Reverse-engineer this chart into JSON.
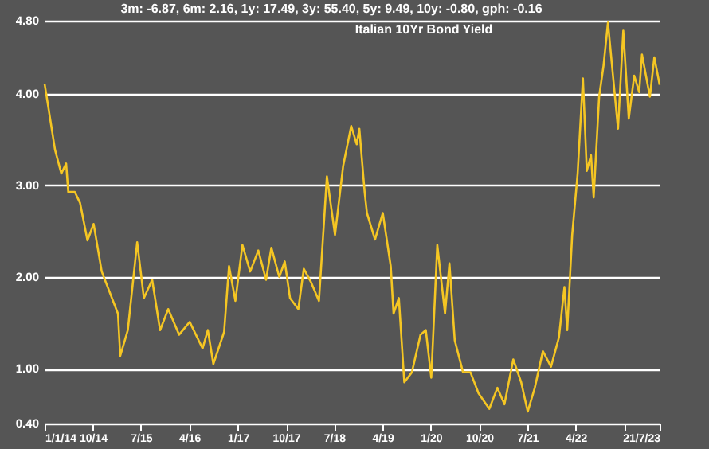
{
  "chart_data": {
    "type": "line",
    "title": "Italian 10Yr Bond Yield",
    "annotations": [
      "3m: -6.87,    6m: 2.16,    1y: 17.49,    3y: 55.40,    5y: 9.49,    10y: -0.80,    gph: -0.16"
    ],
    "x": [
      "2014-01-01",
      "2014-01-25",
      "2014-03-01",
      "2014-04-06",
      "2014-05-03",
      "2014-05-15",
      "2014-06-21",
      "2014-07-21",
      "2014-09-01",
      "2014-10-06",
      "2014-11-21",
      "2015-02-21",
      "2015-03-06",
      "2015-04-18",
      "2015-06-10",
      "2015-07-18",
      "2015-09-03",
      "2015-10-18",
      "2015-12-03",
      "2016-02-03",
      "2016-04-03",
      "2016-06-15",
      "2016-07-15",
      "2016-08-15",
      "2016-10-15",
      "2016-11-12",
      "2016-12-18",
      "2017-01-27",
      "2017-03-12",
      "2017-04-27",
      "2017-06-10",
      "2017-07-10",
      "2017-08-24",
      "2017-09-24",
      "2017-10-24",
      "2017-12-10",
      "2018-01-10",
      "2018-02-21",
      "2018-04-06",
      "2018-05-21",
      "2018-07-06",
      "2018-08-21",
      "2018-10-06",
      "2018-11-06",
      "2018-11-21",
      "2018-12-21",
      "2019-01-03",
      "2019-02-18",
      "2019-04-03",
      "2019-05-18",
      "2019-06-03",
      "2019-07-03",
      "2019-08-03",
      "2019-09-15",
      "2019-11-03",
      "2019-12-03",
      "2020-01-03",
      "2020-02-06",
      "2020-03-21",
      "2020-04-15",
      "2020-05-15",
      "2020-07-01",
      "2020-08-12",
      "2020-09-27",
      "2020-11-27",
      "2021-01-12",
      "2021-02-21",
      "2021-04-12",
      "2021-05-27",
      "2021-07-03",
      "2021-08-12",
      "2021-09-27",
      "2021-11-12",
      "2021-12-27",
      "2022-01-27",
      "2022-02-12",
      "2022-03-12",
      "2022-04-12",
      "2022-05-12",
      "2022-06-03",
      "2022-06-27",
      "2022-07-12",
      "2022-08-12",
      "2022-09-06",
      "2022-10-01",
      "2022-11-27",
      "2022-12-27",
      "2023-01-27",
      "2023-02-27",
      "2023-03-27",
      "2023-04-12",
      "2023-05-27",
      "2023-06-21",
      "2023-07-21"
    ],
    "series": [
      {
        "color": "#f5c623",
        "values": [
          4.11,
          3.82,
          3.39,
          3.13,
          3.24,
          2.93,
          2.93,
          2.81,
          2.4,
          2.58,
          2.06,
          1.6,
          1.14,
          1.42,
          2.38,
          1.77,
          1.97,
          1.42,
          1.65,
          1.37,
          1.51,
          1.22,
          1.42,
          1.05,
          1.4,
          2.12,
          1.74,
          2.35,
          2.06,
          2.29,
          1.97,
          2.32,
          2.0,
          2.17,
          1.77,
          1.65,
          2.09,
          1.94,
          1.74,
          3.1,
          2.46,
          3.21,
          3.65,
          3.45,
          3.62,
          2.93,
          2.7,
          2.41,
          2.7,
          2.12,
          1.6,
          1.77,
          0.85,
          0.96,
          1.37,
          1.42,
          0.9,
          2.35,
          1.6,
          2.15,
          1.31,
          0.96,
          0.96,
          0.73,
          0.56,
          0.79,
          0.61,
          1.1,
          0.85,
          0.53,
          0.79,
          1.19,
          1.02,
          1.34,
          1.89,
          1.42,
          2.46,
          3.13,
          4.17,
          3.16,
          3.33,
          2.87,
          3.97,
          4.31,
          4.78,
          3.62,
          4.69,
          3.73,
          4.2,
          4.02,
          4.43,
          3.97,
          4.4,
          4.1
        ]
      }
    ],
    "ylim": [
      0.4,
      4.8
    ],
    "yticks": [
      {
        "value": 0.4,
        "label": "0.40"
      },
      {
        "value": 1,
        "label": "1.00"
      },
      {
        "value": 2,
        "label": "2.00"
      },
      {
        "value": 3,
        "label": "3.00"
      },
      {
        "value": 4,
        "label": "4.00"
      },
      {
        "value": 4.8,
        "label": "4.80"
      }
    ],
    "xlim": [
      "2014-01-01",
      "2023-07-21"
    ],
    "xticks": [
      {
        "value": "2014-01-01",
        "label": "1/1/14"
      },
      {
        "value": "2014-10-01",
        "label": "10/14"
      },
      {
        "value": "2015-07-01",
        "label": "7/15"
      },
      {
        "value": "2016-04-01",
        "label": "4/16"
      },
      {
        "value": "2017-01-01",
        "label": "1/17"
      },
      {
        "value": "2017-10-01",
        "label": "10/17"
      },
      {
        "value": "2018-07-01",
        "label": "7/18"
      },
      {
        "value": "2019-04-01",
        "label": "4/19"
      },
      {
        "value": "2020-01-01",
        "label": "1/20"
      },
      {
        "value": "2020-10-01",
        "label": "10/20"
      },
      {
        "value": "2021-07-01",
        "label": "7/21"
      },
      {
        "value": "2022-04-01",
        "label": "4/22"
      },
      {
        "value": "2023-01-01",
        "label": null
      },
      {
        "value": "2023-07-21",
        "label": "21/7/23"
      }
    ],
    "grid": "y"
  }
}
